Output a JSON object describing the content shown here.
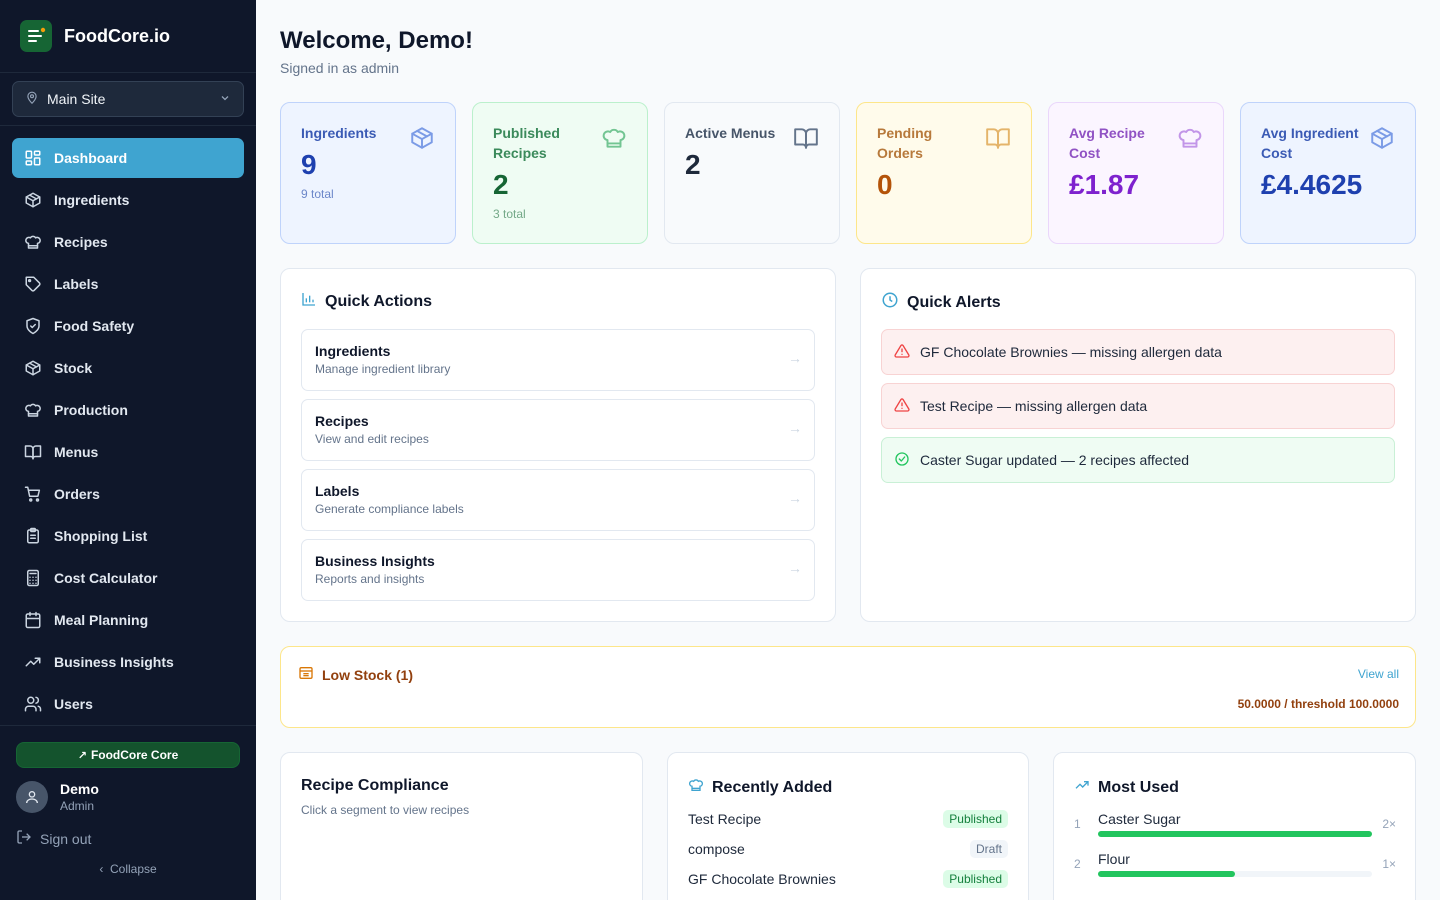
{
  "brand": {
    "name": "FoodCore.io"
  },
  "site_selector": {
    "value": "Main Site"
  },
  "nav": [
    {
      "label": "Dashboard",
      "icon": "dashboard-grid-icon",
      "active": true
    },
    {
      "label": "Ingredients",
      "icon": "box-icon"
    },
    {
      "label": "Recipes",
      "icon": "chef-hat-icon"
    },
    {
      "label": "Labels",
      "icon": "tag-icon"
    },
    {
      "label": "Food Safety",
      "icon": "shield-check-icon"
    },
    {
      "label": "Stock",
      "icon": "box-icon"
    },
    {
      "label": "Production",
      "icon": "chef-hat-icon"
    },
    {
      "label": "Menus",
      "icon": "book-open-icon"
    },
    {
      "label": "Orders",
      "icon": "shopping-cart-icon"
    },
    {
      "label": "Shopping List",
      "icon": "clipboard-icon"
    },
    {
      "label": "Cost Calculator",
      "icon": "calculator-icon"
    },
    {
      "label": "Meal Planning",
      "icon": "calendar-icon"
    },
    {
      "label": "Business Insights",
      "icon": "trending-up-icon"
    },
    {
      "label": "Users",
      "icon": "users-icon"
    }
  ],
  "plan": {
    "label": "FoodCore Core"
  },
  "user": {
    "name": "Demo",
    "role": "Admin"
  },
  "sidebar_footer": {
    "signout": "Sign out",
    "collapse": "Collapse"
  },
  "header": {
    "title": "Welcome, Demo!",
    "subtitle": "Signed in as admin"
  },
  "stats": [
    {
      "label": "Ingredients",
      "value": "9",
      "sub": "9 total",
      "icon": "box-icon",
      "bg": "#eef4ff",
      "border": "#bfd3fb",
      "label_color": "#3b5bb5",
      "value_color": "#1e40af",
      "sub_color": "#6b86c9",
      "icon_color": "#7b9be6"
    },
    {
      "label": "Published Recipes",
      "value": "2",
      "sub": "3 total",
      "icon": "chef-hat-icon",
      "bg": "#effcf3",
      "border": "#bbf0cc",
      "label_color": "#3b8a5b",
      "value_color": "#166534",
      "sub_color": "#73a887",
      "icon_color": "#72c592"
    },
    {
      "label": "Active Menus",
      "value": "2",
      "sub": "",
      "icon": "book-open-icon",
      "bg": "#f8fafc",
      "border": "#e2e8f0",
      "label_color": "#475569",
      "value_color": "#1e293b",
      "sub_color": "#94a3b8",
      "icon_color": "#64748b"
    },
    {
      "label": "Pending Orders",
      "value": "0",
      "sub": "",
      "icon": "book-open-icon",
      "bg": "#fffbeb",
      "border": "#fde68a",
      "label_color": "#b7793b",
      "value_color": "#b45309",
      "sub_color": "#d2a66b",
      "icon_color": "#e4b46a"
    },
    {
      "label": "Avg Recipe Cost",
      "value": "£1.87",
      "sub": "",
      "icon": "chef-hat-icon",
      "bg": "#fbf5ff",
      "border": "#ead7fb",
      "label_color": "#9052c4",
      "value_color": "#7e22ce",
      "sub_color": "#b58ad8",
      "icon_color": "#c295e8"
    },
    {
      "label": "Avg Ingredient Cost",
      "value": "£4.4625",
      "sub": "",
      "icon": "box-icon",
      "bg": "#eef4ff",
      "border": "#bfd3fb",
      "label_color": "#3b5bb5",
      "value_color": "#1e40af",
      "sub_color": "#6b86c9",
      "icon_color": "#7b9be6"
    }
  ],
  "quick_actions": {
    "title": "Quick Actions",
    "items": [
      {
        "title": "Ingredients",
        "desc": "Manage ingredient library"
      },
      {
        "title": "Recipes",
        "desc": "View and edit recipes"
      },
      {
        "title": "Labels",
        "desc": "Generate compliance labels"
      },
      {
        "title": "Business Insights",
        "desc": "Reports and insights"
      }
    ],
    "arrow": "→"
  },
  "quick_alerts": {
    "title": "Quick Alerts",
    "items": [
      {
        "text": "GF Chocolate Brownies — missing allergen data",
        "type": "red",
        "icon": "alert-triangle-icon"
      },
      {
        "text": "Test Recipe — missing allergen data",
        "type": "red",
        "icon": "alert-triangle-icon"
      },
      {
        "text": "Caster Sugar updated — 2 recipes affected",
        "type": "green",
        "icon": "check-circle-icon"
      }
    ]
  },
  "low_stock": {
    "title": "Low Stock (1)",
    "view_all": "View all",
    "value": "50.0000 / threshold 100.0000"
  },
  "recipe_compliance": {
    "title": "Recipe Compliance",
    "subtitle": "Click a segment to view recipes"
  },
  "recently_added": {
    "title": "Recently Added",
    "items": [
      {
        "name": "Test Recipe",
        "status": "Published"
      },
      {
        "name": "compose",
        "status": "Draft"
      },
      {
        "name": "GF Chocolate Brownies",
        "status": "Published"
      }
    ]
  },
  "most_used": {
    "title": "Most Used",
    "items": [
      {
        "rank": "1",
        "name": "Caster Sugar",
        "count": "2×",
        "fraction": 1.0
      },
      {
        "rank": "2",
        "name": "Flour",
        "count": "1×",
        "fraction": 0.5
      }
    ]
  },
  "colors": {
    "accent": "#3fa4d0",
    "sidebar_bg": "#0f172a",
    "brand_green": "#166534"
  }
}
